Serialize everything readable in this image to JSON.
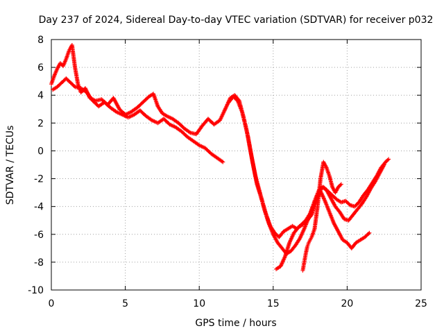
{
  "chart_data": {
    "type": "scatter",
    "title": "Day 237 of 2024, Sidereal Day-to-day VTEC variation (SDTVAR) for receiver p032",
    "xlabel": "GPS time / hours",
    "ylabel": "SDTVAR / TECUs",
    "xlim": [
      0,
      25
    ],
    "ylim": [
      -10,
      8
    ],
    "xticks": [
      0,
      5,
      10,
      15,
      20,
      25
    ],
    "yticks": [
      8,
      6,
      4,
      2,
      0,
      -2,
      -4,
      -6,
      -8,
      -10
    ],
    "grid": true,
    "marker": "+",
    "color": "#ff0000",
    "series": [
      {
        "x": [
          0.0,
          0.2,
          0.4,
          0.6,
          0.8,
          1.0,
          1.2,
          1.4,
          1.6,
          1.8,
          2.0,
          2.3,
          2.6,
          3.0,
          3.4,
          3.8,
          4.2,
          4.6,
          5.0,
          5.4,
          5.8,
          6.2,
          6.6,
          6.9,
          7.2,
          7.5,
          7.8,
          8.2,
          8.6,
          9.0,
          9.4,
          9.8,
          10.2,
          10.6,
          11.0,
          11.4,
          11.8,
          12.1,
          12.4,
          12.7,
          13.0,
          13.3,
          13.6,
          13.9,
          14.2,
          14.5,
          14.8,
          15.1,
          15.4,
          15.7,
          16.0,
          16.3,
          16.6,
          16.9,
          17.2,
          17.5,
          17.8,
          18.1,
          18.4,
          18.7,
          19.0,
          19.3,
          19.6,
          19.9,
          20.2,
          20.5,
          20.8,
          21.1,
          21.4,
          21.7,
          22.0,
          22.3,
          22.6,
          22.8
        ],
        "y": [
          4.8,
          5.4,
          5.9,
          6.3,
          6.1,
          6.6,
          7.2,
          7.6,
          6.0,
          4.8,
          4.2,
          4.5,
          3.8,
          3.6,
          3.7,
          3.3,
          3.8,
          3.0,
          2.6,
          2.8,
          3.1,
          3.5,
          3.9,
          4.1,
          3.2,
          2.7,
          2.5,
          2.3,
          2.0,
          1.6,
          1.3,
          1.2,
          1.8,
          2.3,
          1.9,
          2.2,
          3.1,
          3.8,
          4.0,
          3.6,
          2.4,
          1.0,
          -0.8,
          -2.4,
          -3.4,
          -4.5,
          -5.4,
          -5.9,
          -6.2,
          -5.8,
          -5.6,
          -5.4,
          -5.6,
          -5.3,
          -5.0,
          -4.5,
          -3.6,
          -2.8,
          -2.6,
          -2.9,
          -3.2,
          -3.5,
          -3.7,
          -3.6,
          -3.9,
          -4.0,
          -3.7,
          -3.2,
          -2.8,
          -2.3,
          -1.8,
          -1.2,
          -0.8,
          -0.6
        ]
      },
      {
        "x": [
          0.1,
          0.4,
          0.7,
          1.0,
          1.3,
          1.6,
          2.0,
          2.4,
          2.8,
          3.2,
          3.6,
          4.0,
          4.4,
          4.8,
          5.2,
          5.6,
          6.0,
          6.4,
          6.8,
          7.2,
          7.6,
          8.0,
          8.4,
          8.8,
          9.2,
          9.6,
          10.0,
          10.4,
          10.8,
          11.2,
          11.6
        ],
        "y": [
          4.4,
          4.6,
          4.9,
          5.2,
          4.9,
          4.6,
          4.5,
          4.2,
          3.6,
          3.2,
          3.5,
          3.1,
          2.8,
          2.6,
          2.4,
          2.6,
          2.9,
          2.5,
          2.2,
          2.0,
          2.3,
          1.9,
          1.7,
          1.4,
          1.0,
          0.7,
          0.4,
          0.2,
          -0.2,
          -0.5,
          -0.8
        ]
      },
      {
        "x": [
          12.0,
          12.3,
          12.6,
          12.9,
          13.2,
          13.5,
          13.8,
          14.1,
          14.4,
          14.7,
          15.0,
          15.3,
          15.6,
          15.9,
          16.2,
          16.5,
          16.8,
          17.1,
          17.4,
          17.7,
          18.0,
          18.3,
          18.6,
          18.9,
          19.2,
          19.5,
          19.8,
          20.1,
          20.4,
          20.7,
          21.0,
          21.3,
          21.6,
          21.9,
          22.2,
          22.5
        ],
        "y": [
          3.5,
          3.9,
          3.6,
          2.8,
          1.5,
          -0.2,
          -1.8,
          -3.0,
          -4.2,
          -5.2,
          -6.0,
          -6.6,
          -7.0,
          -7.4,
          -7.2,
          -6.8,
          -6.3,
          -5.6,
          -4.8,
          -4.0,
          -3.2,
          -2.6,
          -2.8,
          -3.4,
          -4.0,
          -4.4,
          -4.9,
          -5.0,
          -4.6,
          -4.2,
          -3.8,
          -3.3,
          -2.7,
          -2.2,
          -1.6,
          -1.0
        ]
      },
      {
        "x": [
          15.2,
          15.5,
          15.8,
          16.1,
          16.4,
          16.7,
          17.0,
          17.3,
          17.6,
          17.9,
          18.2,
          18.5,
          18.8,
          19.1,
          19.4,
          19.7,
          20.0,
          20.3,
          20.6,
          20.9,
          21.2,
          21.5
        ],
        "y": [
          -8.5,
          -8.3,
          -7.6,
          -6.6,
          -5.9,
          -5.5,
          -5.3,
          -5.0,
          -4.6,
          -3.6,
          -2.9,
          -3.6,
          -4.4,
          -5.2,
          -5.8,
          -6.4,
          -6.6,
          -7.0,
          -6.6,
          -6.4,
          -6.2,
          -5.9
        ]
      },
      {
        "x": [
          17.0,
          17.1,
          17.2,
          17.3,
          17.4,
          17.5,
          17.6,
          17.8,
          18.0,
          18.2,
          18.4,
          18.6,
          18.8,
          19.0,
          19.2,
          19.4,
          19.6
        ],
        "y": [
          -8.6,
          -8.0,
          -7.4,
          -6.9,
          -6.6,
          -6.4,
          -6.2,
          -5.6,
          -4.0,
          -2.0,
          -0.8,
          -1.2,
          -1.8,
          -2.6,
          -3.0,
          -2.6,
          -2.4
        ]
      }
    ]
  }
}
